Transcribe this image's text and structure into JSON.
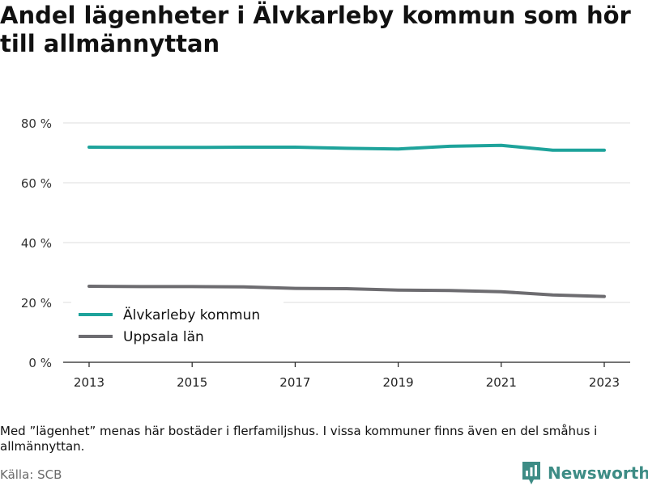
{
  "chart_data": {
    "type": "line",
    "title_lines": [
      "Andel lägenheter i Älvkarleby kommun som hör",
      "till allmännyttan"
    ],
    "x": [
      2013,
      2014,
      2015,
      2016,
      2017,
      2018,
      2019,
      2020,
      2021,
      2022,
      2023
    ],
    "x_ticks": [
      "2013",
      "2015",
      "2017",
      "2019",
      "2021",
      "2023"
    ],
    "y_ticks": [
      "0 %",
      "20 %",
      "40 %",
      "60 %",
      "80 %"
    ],
    "ylim": [
      0,
      80
    ],
    "grid": true,
    "legend_position": "bottom-left",
    "series": [
      {
        "name": "Älvkarleby kommun",
        "color": "#1ea39b",
        "values": [
          71.9,
          71.8,
          71.8,
          71.9,
          71.9,
          71.5,
          71.3,
          72.2,
          72.5,
          70.9,
          70.9
        ]
      },
      {
        "name": "Uppsala län",
        "color": "#6d6c70",
        "values": [
          25.4,
          25.3,
          25.3,
          25.2,
          24.7,
          24.6,
          24.1,
          24.0,
          23.6,
          22.5,
          22.0
        ]
      }
    ]
  },
  "note": "Med ”lägenhet” menas här bostäder i flerfamiljshus. I vissa kommuner finns även en del småhus i allmännyttan.",
  "source": "Källa: SCB",
  "brand": {
    "name": "Newsworthy",
    "logo_icon": "newsworthy-logo-icon",
    "color": "#3d8c85"
  }
}
